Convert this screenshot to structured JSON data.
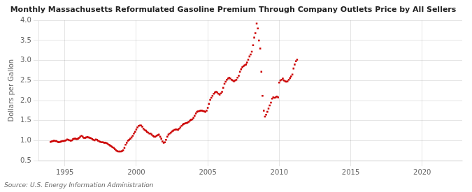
{
  "chart_data": {
    "type": "scatter",
    "title": "Monthly Massachusetts Reformulated Gasoline Premium Through Company Outlets Price by All Sellers",
    "ylabel": "Dollars per Gallon",
    "annotations": [
      "Source: U.S. Energy Information Administration"
    ],
    "color": "#cc0000",
    "marker": "square",
    "grid": true,
    "xlim": [
      1993.2,
      2022.8
    ],
    "xticks": [
      1995,
      2000,
      2005,
      2010,
      2015,
      2020
    ],
    "ylim": [
      0.5,
      4.0
    ],
    "yticks": [
      0.5,
      {
        "value": 1.0,
        "label": "1.0"
      },
      1.5,
      {
        "value": 2.0,
        "label": "2.0"
      },
      2.5,
      {
        "value": 3.0,
        "label": "3.0"
      },
      3.5,
      {
        "value": 4.0,
        "label": "4.0"
      }
    ],
    "x": [
      1994.0,
      1994.08,
      1994.17,
      1994.25,
      1994.33,
      1994.42,
      1994.5,
      1994.58,
      1994.67,
      1994.75,
      1994.83,
      1994.92,
      1995.0,
      1995.08,
      1995.17,
      1995.25,
      1995.33,
      1995.42,
      1995.5,
      1995.58,
      1995.67,
      1995.75,
      1995.83,
      1995.92,
      1996.0,
      1996.08,
      1996.17,
      1996.25,
      1996.33,
      1996.42,
      1996.5,
      1996.58,
      1996.67,
      1996.75,
      1996.83,
      1996.92,
      1997.0,
      1997.08,
      1997.17,
      1997.25,
      1997.33,
      1997.42,
      1997.5,
      1997.58,
      1997.67,
      1997.75,
      1997.83,
      1997.92,
      1998.0,
      1998.08,
      1998.17,
      1998.25,
      1998.33,
      1998.42,
      1998.5,
      1998.58,
      1998.67,
      1998.75,
      1998.83,
      1998.92,
      1999.0,
      1999.08,
      1999.17,
      1999.25,
      1999.33,
      1999.42,
      1999.5,
      1999.58,
      1999.67,
      1999.75,
      1999.83,
      1999.92,
      2000.0,
      2000.08,
      2000.17,
      2000.25,
      2000.33,
      2000.42,
      2000.5,
      2000.58,
      2000.67,
      2000.75,
      2000.83,
      2000.92,
      2001.0,
      2001.08,
      2001.17,
      2001.25,
      2001.33,
      2001.42,
      2001.5,
      2001.58,
      2001.67,
      2001.75,
      2001.83,
      2001.92,
      2002.0,
      2002.08,
      2002.17,
      2002.25,
      2002.33,
      2002.42,
      2002.5,
      2002.58,
      2002.67,
      2002.75,
      2002.83,
      2002.92,
      2003.0,
      2003.08,
      2003.17,
      2003.25,
      2003.33,
      2003.42,
      2003.5,
      2003.58,
      2003.67,
      2003.75,
      2003.83,
      2003.92,
      2004.0,
      2004.08,
      2004.17,
      2004.25,
      2004.33,
      2004.42,
      2004.5,
      2004.58,
      2004.67,
      2004.75,
      2004.83,
      2004.92,
      2005.0,
      2005.08,
      2005.17,
      2005.25,
      2005.33,
      2005.42,
      2005.5,
      2005.58,
      2005.67,
      2005.75,
      2005.83,
      2005.92,
      2006.0,
      2006.08,
      2006.17,
      2006.25,
      2006.33,
      2006.42,
      2006.5,
      2006.58,
      2006.67,
      2006.75,
      2006.83,
      2006.92,
      2007.0,
      2007.08,
      2007.17,
      2007.25,
      2007.33,
      2007.42,
      2007.5,
      2007.58,
      2007.67,
      2007.75,
      2007.83,
      2007.92,
      2008.0,
      2008.08,
      2008.17,
      2008.25,
      2008.33,
      2008.42,
      2008.5,
      2008.58,
      2008.67,
      2008.75,
      2008.83,
      2008.92,
      2009.0,
      2009.08,
      2009.17,
      2009.25,
      2009.33,
      2009.42,
      2009.5,
      2009.58,
      2009.67,
      2009.75,
      2009.83,
      2009.92,
      2010.0,
      2010.08,
      2010.17,
      2010.25,
      2010.33,
      2010.42,
      2010.5,
      2010.58,
      2010.67,
      2010.75,
      2010.83,
      2010.92,
      2011.0,
      2011.08,
      2011.17,
      2011.25
    ],
    "values": [
      0.97,
      0.98,
      0.99,
      1.0,
      0.99,
      0.99,
      0.97,
      0.96,
      0.97,
      0.98,
      0.99,
      0.99,
      1.0,
      1.01,
      1.03,
      1.02,
      1.01,
      1.0,
      1.01,
      1.04,
      1.05,
      1.05,
      1.04,
      1.05,
      1.07,
      1.1,
      1.12,
      1.1,
      1.07,
      1.07,
      1.08,
      1.09,
      1.08,
      1.07,
      1.06,
      1.04,
      1.02,
      1.01,
      1.03,
      1.02,
      1.0,
      0.98,
      0.97,
      0.96,
      0.96,
      0.95,
      0.95,
      0.94,
      0.92,
      0.9,
      0.88,
      0.86,
      0.84,
      0.82,
      0.79,
      0.76,
      0.74,
      0.73,
      0.73,
      0.73,
      0.74,
      0.76,
      0.82,
      0.9,
      0.95,
      1.0,
      1.02,
      1.05,
      1.08,
      1.12,
      1.18,
      1.22,
      1.28,
      1.33,
      1.37,
      1.38,
      1.38,
      1.35,
      1.3,
      1.27,
      1.25,
      1.22,
      1.2,
      1.18,
      1.18,
      1.15,
      1.12,
      1.1,
      1.1,
      1.12,
      1.14,
      1.15,
      1.1,
      1.05,
      0.98,
      0.95,
      0.96,
      1.02,
      1.1,
      1.15,
      1.18,
      1.2,
      1.23,
      1.25,
      1.27,
      1.28,
      1.28,
      1.27,
      1.3,
      1.33,
      1.37,
      1.4,
      1.42,
      1.43,
      1.44,
      1.45,
      1.47,
      1.5,
      1.52,
      1.53,
      1.57,
      1.62,
      1.68,
      1.72,
      1.73,
      1.74,
      1.75,
      1.75,
      1.74,
      1.73,
      1.72,
      1.75,
      1.82,
      1.92,
      2.02,
      2.07,
      2.12,
      2.17,
      2.2,
      2.22,
      2.2,
      2.17,
      2.15,
      2.18,
      2.22,
      2.32,
      2.42,
      2.47,
      2.52,
      2.55,
      2.57,
      2.55,
      2.52,
      2.5,
      2.48,
      2.5,
      2.52,
      2.57,
      2.62,
      2.72,
      2.78,
      2.83,
      2.86,
      2.88,
      2.9,
      2.95,
      3.02,
      3.1,
      3.15,
      3.22,
      3.38,
      3.57,
      3.68,
      3.92,
      3.8,
      3.5,
      3.3,
      2.72,
      2.12,
      1.75,
      1.6,
      1.65,
      1.72,
      1.8,
      1.88,
      1.95,
      2.05,
      2.08,
      2.07,
      2.08,
      2.1,
      2.08,
      2.45,
      2.5,
      2.52,
      2.55,
      2.5,
      2.48,
      2.47,
      2.48,
      2.52,
      2.56,
      2.6,
      2.65,
      2.8,
      2.9,
      2.98,
      3.02
    ]
  }
}
